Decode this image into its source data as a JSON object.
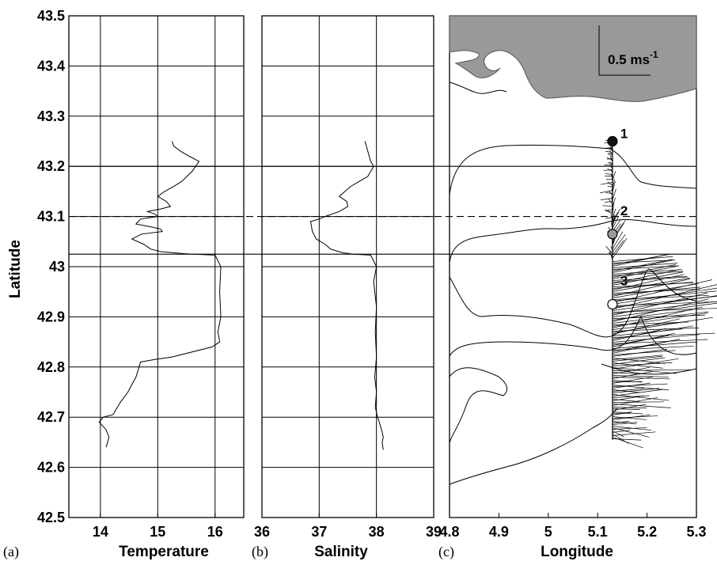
{
  "chart_data": [
    {
      "panel": "(a)",
      "type": "line",
      "xlabel": "Temperature",
      "ylabel": "Latitude",
      "xlim": [
        13.45,
        16.5
      ],
      "ylim": [
        42.5,
        43.5
      ],
      "xticks": [
        14,
        15,
        16
      ],
      "yticks": [
        42.5,
        42.6,
        42.7,
        42.8,
        42.9,
        43.0,
        43.1,
        43.2,
        43.3,
        43.4,
        43.5
      ],
      "ytick_labels": [
        "42.5",
        "42.6",
        "42.7",
        "42.8",
        "42.9",
        "43",
        "43.1",
        "43.2",
        "43.3",
        "43.4",
        "43.5"
      ],
      "grid": true,
      "series": [
        {
          "x": [
            15.25,
            15.28,
            15.4,
            15.55,
            15.72,
            15.6,
            15.42,
            15.28,
            15.12,
            15.0,
            15.15,
            15.22,
            15.05,
            14.82,
            14.95,
            15.0,
            14.7,
            14.62,
            14.85,
            15.05,
            15.08,
            14.72,
            14.55,
            14.75,
            14.88,
            15.05,
            15.25,
            15.45,
            15.62,
            16.0,
            16.1,
            16.08,
            16.1,
            16.05,
            16.08,
            15.95,
            15.25,
            14.95,
            14.7,
            14.62,
            14.48,
            14.35,
            14.22,
            14.05,
            13.98,
            14.1,
            14.15,
            14.1
          ],
          "y": [
            43.25,
            43.24,
            43.23,
            43.22,
            43.21,
            43.19,
            43.17,
            43.16,
            43.15,
            43.14,
            43.13,
            43.12,
            43.115,
            43.11,
            43.105,
            43.1,
            43.095,
            43.085,
            43.08,
            43.075,
            43.07,
            43.065,
            43.055,
            43.045,
            43.035,
            43.03,
            43.028,
            43.026,
            43.025,
            43.023,
            43.0,
            42.95,
            42.9,
            42.87,
            42.85,
            42.84,
            42.82,
            42.815,
            42.81,
            42.78,
            42.75,
            42.73,
            42.705,
            42.7,
            42.69,
            42.675,
            42.66,
            42.64
          ]
        }
      ]
    },
    {
      "panel": "(b)",
      "type": "line",
      "xlabel": "Salinity",
      "xlim": [
        36,
        39
      ],
      "ylim": [
        42.5,
        43.5
      ],
      "xticks": [
        36,
        37,
        38,
        39
      ],
      "grid": true,
      "series": [
        {
          "x": [
            37.8,
            37.85,
            37.9,
            37.95,
            37.9,
            37.85,
            37.7,
            37.55,
            37.45,
            37.35,
            37.48,
            37.5,
            37.35,
            37.1,
            37.0,
            36.85,
            36.88,
            36.95,
            37.1,
            37.2,
            37.35,
            37.4,
            37.6,
            37.9,
            38.0,
            37.95,
            38.0,
            37.98,
            38.0,
            37.97,
            38.0,
            37.98,
            38.02,
            38.05,
            38.1,
            38.12,
            38.1,
            38.12
          ],
          "y": [
            43.25,
            43.23,
            43.21,
            43.2,
            43.19,
            43.18,
            43.17,
            43.16,
            43.15,
            43.14,
            43.13,
            43.12,
            43.11,
            43.1,
            43.095,
            43.09,
            43.07,
            43.055,
            43.045,
            43.035,
            43.03,
            43.028,
            43.025,
            43.023,
            43.0,
            42.97,
            42.92,
            42.87,
            42.82,
            42.78,
            42.75,
            42.72,
            42.7,
            42.69,
            42.67,
            42.66,
            42.65,
            42.635
          ]
        }
      ]
    },
    {
      "panel": "(c)",
      "type": "line",
      "xlabel": "Longitude",
      "xlim": [
        4.8,
        5.3
      ],
      "ylim": [
        42.5,
        43.5
      ],
      "xticks": [
        4.8,
        4.9,
        5.0,
        5.1,
        5.2,
        5.3
      ],
      "xtick_labels": [
        "4.8",
        "4.9",
        "5",
        "5.1",
        "5.2",
        "5.3"
      ],
      "grid": false,
      "scale_label": "0.5 ms",
      "scale_label_sup": "-1",
      "scale_length": 0.5,
      "stations": [
        {
          "label": "1",
          "lon": 5.13,
          "lat": 43.25,
          "fill": "#111111"
        },
        {
          "label": "2",
          "lon": 5.13,
          "lat": 43.065,
          "fill": "#999999"
        },
        {
          "label": "3",
          "lon": 5.13,
          "lat": 42.925,
          "fill": "#ffffff"
        }
      ],
      "track": {
        "lon": 5.13,
        "lat_start": 43.25,
        "lat_end": 42.655
      },
      "coast_color": "#999999"
    }
  ],
  "reference_lines": {
    "solid": [
      43.2,
      43.025
    ],
    "dashed": [
      43.1
    ]
  },
  "panel_ids": [
    "(a)",
    "(b)",
    "(c)"
  ]
}
